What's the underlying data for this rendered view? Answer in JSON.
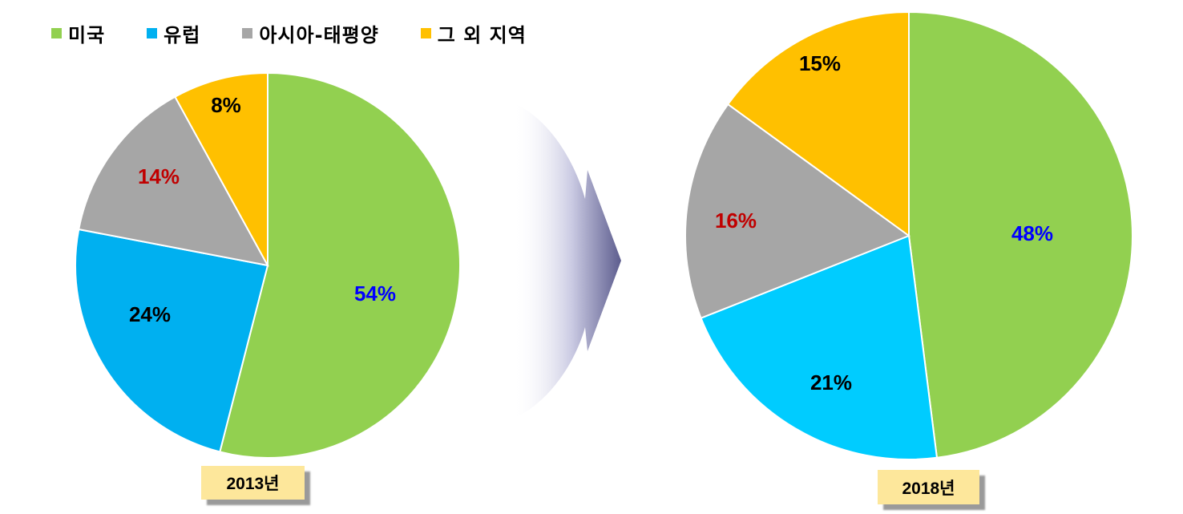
{
  "legend": [
    {
      "label": "미국",
      "color": "#92d050"
    },
    {
      "label": "유럽",
      "color": "#00b0f0"
    },
    {
      "label": "아시아-태평양",
      "color": "#a6a6a6"
    },
    {
      "label": "그 외 지역",
      "color": "#ffc000"
    }
  ],
  "chart_data": [
    {
      "type": "pie",
      "year_label": "2013년",
      "slices": [
        {
          "category": "미국",
          "value": 54,
          "label": "54%",
          "color": "#92d050",
          "label_color": "#0000ff"
        },
        {
          "category": "유럽",
          "value": 24,
          "label": "24%",
          "color": "#00b0f0",
          "label_color": "#000000"
        },
        {
          "category": "아시아-태평양",
          "value": 14,
          "label": "14%",
          "color": "#a6a6a6",
          "label_color": "#c00000"
        },
        {
          "category": "그 외 지역",
          "value": 8,
          "label": "8%",
          "color": "#ffc000",
          "label_color": "#000000"
        }
      ]
    },
    {
      "type": "pie",
      "year_label": "2018년",
      "slices": [
        {
          "category": "미국",
          "value": 48,
          "label": "48%",
          "color": "#92d050",
          "label_color": "#0000ff"
        },
        {
          "category": "유럽",
          "value": 21,
          "label": "21%",
          "color": "#00ccff",
          "label_color": "#000000"
        },
        {
          "category": "아시아-태평양",
          "value": 16,
          "label": "16%",
          "color": "#a6a6a6",
          "label_color": "#c00000"
        },
        {
          "category": "그 외 지역",
          "value": 15,
          "label": "15%",
          "color": "#ffc000",
          "label_color": "#000000"
        }
      ]
    }
  ],
  "arrow": {
    "icon": "right-arrow-icon",
    "color": "#8f8fc0"
  }
}
